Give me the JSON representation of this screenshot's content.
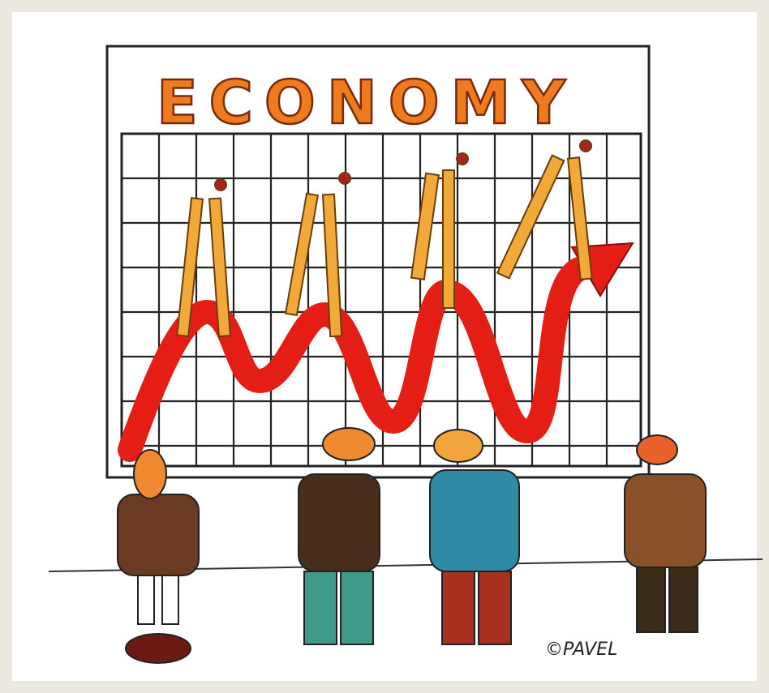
{
  "title": "ECONOMY",
  "signature": "©PAVEL"
}
